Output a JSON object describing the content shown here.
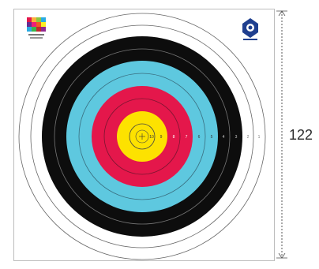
{
  "target": {
    "ring_numbers": [
      "10",
      "9",
      "8",
      "7",
      "6",
      "5",
      "4",
      "3",
      "2",
      "1"
    ],
    "colors": {
      "white": "#ffffff",
      "black": "#0d0d0d",
      "blue": "#5ec8df",
      "red": "#e4174b",
      "gold": "#fde200",
      "ring_line": "#555555"
    }
  },
  "dimension": {
    "label": "122"
  },
  "logos": {
    "left": "colorful-sponsor-logo",
    "right": "archery-federation-logo"
  }
}
